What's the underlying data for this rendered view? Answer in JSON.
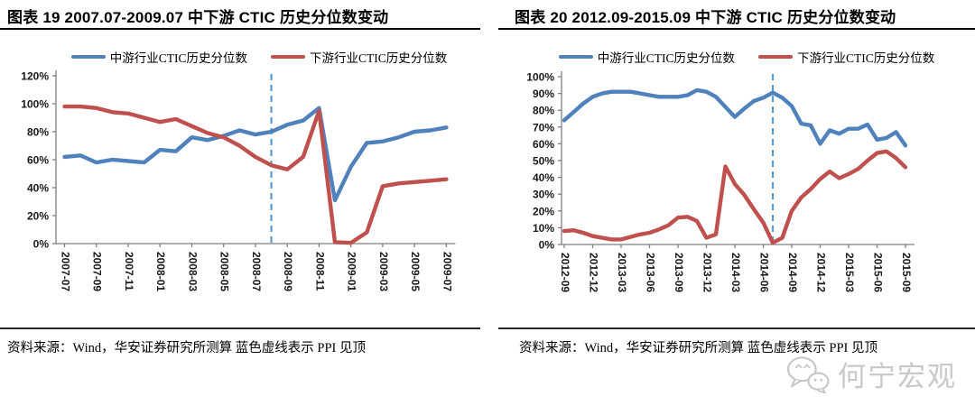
{
  "page": {
    "background": "#ffffff"
  },
  "watermark": {
    "text": "何宁宏观",
    "icon": "wechat-bubbles-icon",
    "color": "#c9c9c9"
  },
  "chart_data": [
    {
      "type": "line",
      "title": "图表 19 2007.07-2009.07 中下游 CTIC 历史分位数变动",
      "source_note": "资料来源：Wind，华安证券研究所测算  蓝色虚线表示 PPI 见顶",
      "legend_position": "top",
      "grid": false,
      "axis_color": "#7f7f7f",
      "ylim": [
        0,
        120
      ],
      "y_ticks": [
        0,
        20,
        40,
        60,
        80,
        100,
        120
      ],
      "y_tick_labels": [
        "0%",
        "20%",
        "40%",
        "60%",
        "80%",
        "100%",
        "120%"
      ],
      "x_tick_every": 2,
      "categories": [
        "2007-07",
        "2007-08",
        "2007-09",
        "2007-10",
        "2007-11",
        "2007-12",
        "2008-01",
        "2008-02",
        "2008-03",
        "2008-04",
        "2008-05",
        "2008-06",
        "2008-07",
        "2008-08",
        "2008-09",
        "2008-10",
        "2008-11",
        "2008-12",
        "2009-01",
        "2009-02",
        "2009-03",
        "2009-04",
        "2009-05",
        "2009-06",
        "2009-07"
      ],
      "dashed_vline": {
        "at_category": "2008-08",
        "color": "#5B9BD5",
        "meaning": "PPI 见顶"
      },
      "series": [
        {
          "name": "中游行业CTIC历史分位数",
          "color": "#4F81BD",
          "values": [
            62,
            63,
            58,
            60,
            59,
            58,
            67,
            66,
            76,
            74,
            77,
            81,
            78,
            80,
            85,
            88,
            97,
            31,
            55,
            72,
            73,
            76,
            80,
            81,
            83
          ]
        },
        {
          "name": "下游行业CTIC历史分位数",
          "color": "#C0504D",
          "values": [
            98,
            98,
            97,
            94,
            93,
            90,
            87,
            89,
            84,
            79,
            76,
            70,
            62,
            56,
            53,
            62,
            95,
            1,
            0.5,
            8,
            41,
            43,
            44,
            45,
            46
          ]
        }
      ]
    },
    {
      "type": "line",
      "title": "图表 20 2012.09-2015.09 中下游 CTIC 历史分位数变动",
      "source_note": "资料来源：Wind，华安证券研究所测算  蓝色虚线表示 PPI 见顶",
      "legend_position": "top",
      "grid": false,
      "axis_color": "#7f7f7f",
      "ylim": [
        0,
        100
      ],
      "y_ticks": [
        0,
        10,
        20,
        30,
        40,
        50,
        60,
        70,
        80,
        90,
        100
      ],
      "y_tick_labels": [
        "0%",
        "10%",
        "20%",
        "30%",
        "40%",
        "50%",
        "60%",
        "70%",
        "80%",
        "90%",
        "100%"
      ],
      "x_tick_every": 3,
      "categories": [
        "2012-09",
        "2012-10",
        "2012-11",
        "2012-12",
        "2013-01",
        "2013-02",
        "2013-03",
        "2013-04",
        "2013-05",
        "2013-06",
        "2013-07",
        "2013-08",
        "2013-09",
        "2013-10",
        "2013-11",
        "2013-12",
        "2014-01",
        "2014-02",
        "2014-03",
        "2014-04",
        "2014-05",
        "2014-06",
        "2014-07",
        "2014-08",
        "2014-09",
        "2014-10",
        "2014-11",
        "2014-12",
        "2015-01",
        "2015-02",
        "2015-03",
        "2015-04",
        "2015-05",
        "2015-06",
        "2015-07",
        "2015-08",
        "2015-09"
      ],
      "dashed_vline": {
        "at_category": "2014-07",
        "color": "#5B9BD5",
        "meaning": "PPI 见顶"
      },
      "series": [
        {
          "name": "中游行业CTIC历史分位数",
          "color": "#4F81BD",
          "values": [
            74,
            79,
            84,
            88,
            90,
            91,
            91,
            91,
            90,
            89,
            88,
            88,
            88,
            89,
            92,
            91,
            88,
            82,
            76,
            81,
            85.5,
            87.5,
            90.5,
            87.5,
            82.5,
            72,
            71,
            60,
            68,
            66,
            69,
            69,
            71.5,
            62.5,
            63.5,
            67,
            59
          ]
        },
        {
          "name": "下游行业CTIC历史分位数",
          "color": "#C0504D",
          "values": [
            8,
            8.5,
            7,
            5,
            4,
            3,
            3,
            4.5,
            6,
            7,
            9,
            11.5,
            16,
            16.5,
            14,
            4,
            6,
            46.5,
            36,
            29.5,
            21,
            13,
            1,
            4,
            20,
            28,
            33,
            39,
            43.5,
            39.5,
            42,
            45,
            50,
            54.5,
            55.5,
            51.5,
            46
          ]
        }
      ]
    }
  ]
}
